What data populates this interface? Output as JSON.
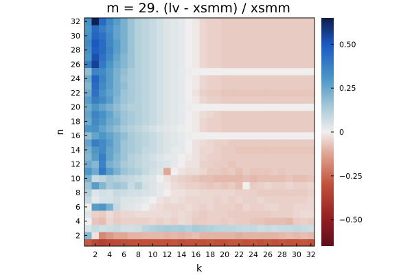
{
  "chart_data": {
    "type": "heatmap",
    "title": "m = 29. (lv - xsmm) / xsmm",
    "xlabel": "k",
    "ylabel": "n",
    "x": [
      1,
      2,
      3,
      4,
      5,
      6,
      7,
      8,
      9,
      10,
      11,
      12,
      13,
      14,
      15,
      16,
      17,
      18,
      19,
      20,
      21,
      22,
      23,
      24,
      25,
      26,
      27,
      28,
      29,
      30,
      31,
      32
    ],
    "y": [
      1,
      2,
      3,
      4,
      5,
      6,
      7,
      8,
      9,
      10,
      11,
      12,
      13,
      14,
      15,
      16,
      17,
      18,
      19,
      20,
      21,
      22,
      23,
      24,
      25,
      26,
      27,
      28,
      29,
      30,
      31,
      32
    ],
    "xticks": [
      2,
      4,
      6,
      8,
      10,
      12,
      14,
      16,
      18,
      20,
      22,
      24,
      26,
      28,
      30,
      32
    ],
    "yticks": [
      2,
      4,
      6,
      8,
      10,
      12,
      14,
      16,
      18,
      20,
      22,
      24,
      26,
      28,
      30,
      32
    ],
    "xlim": [
      0.5,
      32.5
    ],
    "ylim": [
      0.5,
      32.5
    ],
    "clim": [
      -0.65,
      0.65
    ],
    "colorbar_ticks": [
      {
        "value": 0.5,
        "label": "0.50"
      },
      {
        "value": 0.25,
        "label": "0.25"
      },
      {
        "value": 0,
        "label": "0"
      },
      {
        "value": -0.25,
        "label": "−0.25"
      },
      {
        "value": -0.5,
        "label": "−0.50"
      }
    ],
    "colormap": {
      "stops": [
        {
          "value": -0.65,
          "color": "#5e0f1e"
        },
        {
          "value": -0.5,
          "color": "#8f1d22"
        },
        {
          "value": -0.3,
          "color": "#c0503a"
        },
        {
          "value": -0.12,
          "color": "#e0a796"
        },
        {
          "value": 0,
          "color": "#f0eeee"
        },
        {
          "value": 0.12,
          "color": "#b4d0da"
        },
        {
          "value": 0.3,
          "color": "#4d97c6"
        },
        {
          "value": 0.5,
          "color": "#1a58c2"
        },
        {
          "value": 0.65,
          "color": "#101c4a"
        }
      ]
    },
    "grid": false,
    "colorbar": "right",
    "z": [
      [
        -0.28,
        -0.33,
        -0.36,
        -0.33,
        -0.32,
        -0.31,
        -0.3,
        -0.3,
        -0.3,
        -0.3,
        -0.3,
        -0.3,
        -0.29,
        -0.31,
        -0.3,
        -0.3,
        -0.3,
        -0.29,
        -0.3,
        -0.3,
        -0.29,
        -0.29,
        -0.3,
        -0.29,
        -0.3,
        -0.29,
        -0.3,
        -0.29,
        -0.3,
        -0.3,
        -0.29,
        -0.3
      ],
      [
        0.2,
        -0.02,
        -0.18,
        -0.15,
        -0.12,
        -0.12,
        -0.1,
        -0.1,
        -0.09,
        -0.09,
        -0.09,
        -0.1,
        -0.09,
        -0.1,
        -0.09,
        -0.08,
        -0.1,
        -0.1,
        -0.1,
        -0.1,
        -0.1,
        -0.11,
        -0.1,
        -0.1,
        -0.1,
        -0.1,
        -0.1,
        -0.09,
        -0.08,
        -0.09,
        -0.08,
        -0.09
      ],
      [
        0.05,
        0.08,
        0.06,
        0.07,
        0.08,
        0.06,
        0.06,
        0.07,
        0.1,
        0.12,
        0.13,
        0.14,
        0.13,
        0.14,
        0.12,
        0.14,
        0.13,
        0.12,
        0.11,
        0.1,
        0.1,
        0.09,
        0.08,
        0.09,
        0.07,
        0.08,
        0.07,
        0.08,
        0.08,
        0.09,
        0.08,
        0.07
      ],
      [
        0.0,
        -0.07,
        -0.08,
        -0.04,
        -0.06,
        -0.05,
        -0.05,
        -0.05,
        -0.05,
        -0.04,
        -0.05,
        -0.04,
        -0.05,
        -0.03,
        -0.04,
        -0.06,
        -0.06,
        -0.05,
        -0.05,
        -0.06,
        -0.05,
        -0.06,
        -0.06,
        -0.07,
        -0.07,
        -0.08,
        -0.08,
        -0.08,
        -0.09,
        -0.06,
        -0.05,
        -0.06
      ],
      [
        0.04,
        -0.05,
        -0.06,
        -0.03,
        -0.05,
        -0.04,
        -0.04,
        -0.03,
        -0.03,
        -0.03,
        -0.03,
        -0.03,
        -0.04,
        -0.03,
        -0.04,
        -0.05,
        -0.06,
        -0.05,
        -0.05,
        -0.05,
        -0.06,
        -0.06,
        -0.06,
        -0.06,
        -0.06,
        -0.06,
        -0.05,
        -0.05,
        -0.05,
        -0.04,
        -0.03,
        -0.03
      ],
      [
        0.0,
        0.28,
        0.3,
        0.22,
        0.08,
        0.04,
        0.03,
        0.02,
        0.0,
        -0.02,
        -0.03,
        -0.04,
        -0.04,
        -0.04,
        -0.03,
        -0.04,
        -0.05,
        -0.04,
        -0.05,
        -0.05,
        -0.05,
        -0.06,
        -0.04,
        -0.05,
        -0.05,
        -0.04,
        -0.04,
        -0.05,
        -0.05,
        -0.04,
        -0.04,
        -0.04
      ],
      [
        0.08,
        0.02,
        0.05,
        0.05,
        0.07,
        0.04,
        0.04,
        0.03,
        0.02,
        0.0,
        -0.02,
        -0.03,
        -0.02,
        -0.03,
        -0.04,
        -0.04,
        -0.04,
        -0.04,
        -0.05,
        -0.04,
        -0.05,
        -0.04,
        -0.05,
        -0.05,
        -0.04,
        -0.05,
        -0.05,
        -0.05,
        -0.05,
        -0.05,
        -0.05,
        -0.04
      ],
      [
        0.12,
        0.04,
        0.06,
        0.05,
        0.08,
        0.07,
        0.06,
        0.06,
        0.05,
        0.04,
        0.02,
        0.0,
        -0.02,
        -0.02,
        -0.03,
        -0.03,
        -0.04,
        -0.04,
        -0.04,
        -0.04,
        -0.04,
        -0.05,
        -0.05,
        -0.05,
        -0.06,
        -0.06,
        -0.06,
        -0.06,
        -0.06,
        -0.06,
        -0.06,
        -0.05
      ],
      [
        0.16,
        0.28,
        0.2,
        0.14,
        0.16,
        0.14,
        0.08,
        0.12,
        0.06,
        0.04,
        0.02,
        -0.01,
        -0.03,
        -0.04,
        -0.05,
        -0.05,
        -0.06,
        -0.07,
        -0.06,
        -0.07,
        -0.06,
        -0.08,
        0.0,
        -0.06,
        -0.05,
        -0.04,
        -0.05,
        -0.05,
        -0.04,
        -0.05,
        -0.05,
        -0.04
      ],
      [
        0.22,
        0.08,
        0.1,
        0.14,
        0.12,
        0.1,
        0.09,
        0.07,
        0.05,
        0.04,
        0.0,
        -0.02,
        -0.04,
        -0.05,
        -0.06,
        -0.07,
        -0.08,
        -0.08,
        -0.09,
        -0.09,
        -0.09,
        -0.09,
        -0.08,
        -0.09,
        -0.08,
        -0.08,
        -0.08,
        -0.08,
        -0.07,
        -0.08,
        -0.08,
        -0.07
      ],
      [
        0.3,
        0.24,
        0.4,
        0.28,
        0.22,
        0.16,
        0.14,
        0.12,
        0.09,
        0.06,
        0.04,
        -0.12,
        0.0,
        -0.02,
        -0.03,
        -0.03,
        -0.04,
        -0.06,
        -0.06,
        -0.07,
        -0.06,
        -0.08,
        -0.06,
        -0.07,
        -0.07,
        -0.07,
        -0.06,
        -0.07,
        -0.06,
        -0.06,
        -0.06,
        -0.06
      ],
      [
        0.24,
        0.2,
        0.36,
        0.22,
        0.19,
        0.14,
        0.12,
        0.1,
        0.08,
        0.07,
        0.05,
        0.04,
        0.02,
        0.0,
        -0.02,
        -0.02,
        -0.05,
        -0.05,
        -0.06,
        -0.06,
        -0.07,
        -0.06,
        -0.06,
        -0.06,
        -0.06,
        -0.06,
        -0.06,
        -0.06,
        -0.06,
        -0.06,
        -0.06,
        -0.06
      ],
      [
        0.2,
        0.28,
        0.38,
        0.26,
        0.2,
        0.16,
        0.12,
        0.1,
        0.08,
        0.06,
        0.04,
        0.02,
        0.02,
        0.0,
        -0.01,
        -0.02,
        -0.04,
        -0.05,
        -0.05,
        -0.06,
        -0.06,
        -0.06,
        -0.06,
        -0.06,
        -0.06,
        -0.06,
        -0.06,
        -0.06,
        -0.06,
        -0.06,
        -0.06,
        -0.06
      ],
      [
        0.22,
        0.3,
        0.34,
        0.26,
        0.22,
        0.16,
        0.14,
        0.12,
        0.09,
        0.08,
        0.06,
        0.04,
        0.02,
        0.02,
        0.0,
        -0.02,
        -0.04,
        -0.04,
        -0.05,
        -0.06,
        -0.06,
        -0.07,
        -0.07,
        -0.07,
        -0.07,
        -0.07,
        -0.07,
        -0.07,
        -0.07,
        -0.07,
        -0.07,
        -0.07
      ],
      [
        0.26,
        0.38,
        0.34,
        0.28,
        0.22,
        0.16,
        0.14,
        0.12,
        0.1,
        0.08,
        0.06,
        0.04,
        0.03,
        0.02,
        0.0,
        -0.02,
        -0.03,
        -0.04,
        -0.05,
        -0.05,
        -0.06,
        -0.06,
        -0.06,
        -0.06,
        -0.06,
        -0.06,
        -0.06,
        -0.06,
        -0.06,
        -0.06,
        -0.06,
        -0.06
      ],
      [
        0.18,
        0.26,
        0.3,
        0.26,
        0.22,
        0.18,
        0.14,
        0.12,
        0.1,
        0.08,
        0.06,
        0.04,
        0.03,
        0.02,
        0.01,
        0.0,
        0.0,
        0.0,
        0.0,
        0.0,
        0.0,
        0.0,
        0.0,
        0.0,
        0.0,
        0.0,
        0.0,
        0.0,
        0.0,
        0.0,
        0.0,
        0.0
      ],
      [
        0.3,
        0.32,
        0.26,
        0.22,
        0.18,
        0.14,
        0.12,
        0.1,
        0.08,
        0.06,
        0.04,
        0.03,
        0.02,
        0.01,
        0.0,
        -0.01,
        -0.04,
        -0.05,
        -0.05,
        -0.06,
        -0.06,
        -0.06,
        -0.06,
        -0.06,
        -0.06,
        -0.06,
        -0.06,
        -0.06,
        -0.06,
        -0.06,
        -0.06,
        -0.06
      ],
      [
        0.24,
        0.34,
        0.3,
        0.24,
        0.22,
        0.16,
        0.14,
        0.12,
        0.1,
        0.08,
        0.06,
        0.04,
        0.03,
        0.02,
        0.0,
        -0.01,
        -0.04,
        -0.05,
        -0.05,
        -0.06,
        -0.06,
        -0.06,
        -0.06,
        -0.06,
        -0.06,
        -0.06,
        -0.06,
        -0.06,
        -0.06,
        -0.06,
        -0.06,
        -0.06
      ],
      [
        0.26,
        0.36,
        0.32,
        0.26,
        0.2,
        0.16,
        0.14,
        0.12,
        0.1,
        0.08,
        0.06,
        0.04,
        0.03,
        0.02,
        0.0,
        -0.01,
        -0.03,
        -0.04,
        -0.05,
        -0.06,
        -0.06,
        -0.06,
        -0.06,
        -0.06,
        -0.06,
        -0.06,
        -0.06,
        -0.06,
        -0.06,
        -0.06,
        -0.06,
        -0.06
      ],
      [
        0.24,
        0.3,
        0.26,
        0.22,
        0.18,
        0.14,
        0.12,
        0.12,
        0.1,
        0.08,
        0.06,
        0.04,
        0.03,
        0.02,
        0.01,
        0.0,
        0.0,
        0.0,
        0.0,
        0.0,
        0.0,
        0.0,
        0.0,
        0.0,
        0.0,
        0.0,
        0.0,
        0.0,
        0.0,
        0.0,
        0.0,
        0.0
      ],
      [
        0.28,
        0.38,
        0.34,
        0.28,
        0.2,
        0.16,
        0.14,
        0.12,
        0.1,
        0.08,
        0.06,
        0.04,
        0.03,
        0.02,
        0.0,
        -0.01,
        -0.04,
        -0.05,
        -0.05,
        -0.06,
        -0.06,
        -0.06,
        -0.06,
        -0.06,
        -0.06,
        -0.06,
        -0.06,
        -0.06,
        -0.06,
        -0.06,
        -0.06,
        -0.06
      ],
      [
        0.24,
        0.42,
        0.32,
        0.26,
        0.22,
        0.16,
        0.14,
        0.12,
        0.1,
        0.08,
        0.06,
        0.04,
        0.03,
        0.02,
        0.0,
        -0.02,
        -0.05,
        -0.06,
        -0.06,
        -0.07,
        -0.07,
        -0.07,
        -0.07,
        -0.07,
        -0.07,
        -0.07,
        -0.07,
        -0.07,
        -0.07,
        -0.07,
        -0.07,
        -0.07
      ],
      [
        0.2,
        0.44,
        0.34,
        0.28,
        0.22,
        0.18,
        0.14,
        0.12,
        0.1,
        0.08,
        0.06,
        0.04,
        0.03,
        0.02,
        0.0,
        -0.01,
        -0.04,
        -0.05,
        -0.05,
        -0.06,
        -0.06,
        -0.06,
        -0.06,
        -0.06,
        -0.06,
        -0.06,
        -0.06,
        -0.06,
        -0.06,
        -0.06,
        -0.06,
        -0.06
      ],
      [
        0.24,
        0.46,
        0.36,
        0.28,
        0.22,
        0.16,
        0.14,
        0.12,
        0.1,
        0.08,
        0.06,
        0.04,
        0.03,
        0.02,
        0.0,
        -0.01,
        -0.04,
        -0.05,
        -0.05,
        -0.06,
        -0.06,
        -0.06,
        -0.06,
        -0.06,
        -0.06,
        -0.06,
        -0.06,
        -0.06,
        -0.06,
        -0.06,
        -0.06,
        -0.06
      ],
      [
        0.18,
        0.36,
        0.34,
        0.28,
        0.22,
        0.18,
        0.14,
        0.12,
        0.1,
        0.08,
        0.06,
        0.04,
        0.03,
        0.02,
        0.01,
        0.0,
        0.0,
        0.0,
        0.0,
        0.0,
        0.0,
        0.0,
        0.0,
        0.0,
        0.0,
        0.0,
        0.0,
        0.0,
        0.0,
        0.0,
        0.0,
        0.0
      ],
      [
        0.38,
        0.56,
        0.4,
        0.3,
        0.24,
        0.2,
        0.16,
        0.12,
        0.1,
        0.08,
        0.06,
        0.04,
        0.03,
        0.02,
        0.0,
        -0.01,
        -0.04,
        -0.05,
        -0.05,
        -0.06,
        -0.06,
        -0.06,
        -0.06,
        -0.06,
        -0.06,
        -0.06,
        -0.06,
        -0.06,
        -0.06,
        -0.06,
        -0.06,
        -0.06
      ],
      [
        0.3,
        0.52,
        0.42,
        0.34,
        0.26,
        0.2,
        0.16,
        0.12,
        0.1,
        0.08,
        0.06,
        0.04,
        0.03,
        0.02,
        0.0,
        -0.01,
        -0.04,
        -0.05,
        -0.05,
        -0.06,
        -0.06,
        -0.06,
        -0.06,
        -0.06,
        -0.06,
        -0.06,
        -0.06,
        -0.06,
        -0.06,
        -0.06,
        -0.06,
        -0.06
      ],
      [
        0.32,
        0.48,
        0.44,
        0.36,
        0.28,
        0.22,
        0.16,
        0.12,
        0.1,
        0.08,
        0.06,
        0.04,
        0.03,
        0.02,
        0.0,
        -0.01,
        -0.04,
        -0.05,
        -0.05,
        -0.06,
        -0.06,
        -0.06,
        -0.06,
        -0.06,
        -0.06,
        -0.06,
        -0.06,
        -0.06,
        -0.06,
        -0.06,
        -0.06,
        -0.06
      ],
      [
        0.34,
        0.5,
        0.44,
        0.34,
        0.28,
        0.22,
        0.16,
        0.12,
        0.1,
        0.08,
        0.06,
        0.04,
        0.03,
        0.02,
        0.0,
        -0.01,
        -0.04,
        -0.05,
        -0.05,
        -0.06,
        -0.06,
        -0.06,
        -0.06,
        -0.06,
        -0.06,
        -0.06,
        -0.06,
        -0.06,
        -0.06,
        -0.06,
        -0.06,
        -0.06
      ],
      [
        0.32,
        0.46,
        0.42,
        0.34,
        0.26,
        0.22,
        0.16,
        0.12,
        0.1,
        0.08,
        0.06,
        0.04,
        0.03,
        0.02,
        0.0,
        -0.01,
        -0.04,
        -0.05,
        -0.05,
        -0.06,
        -0.06,
        -0.06,
        -0.06,
        -0.06,
        -0.06,
        -0.06,
        -0.06,
        -0.06,
        -0.06,
        -0.06,
        -0.06,
        -0.06
      ],
      [
        0.3,
        0.44,
        0.38,
        0.32,
        0.26,
        0.22,
        0.16,
        0.12,
        0.1,
        0.08,
        0.06,
        0.04,
        0.03,
        0.02,
        0.0,
        -0.01,
        -0.04,
        -0.05,
        -0.05,
        -0.06,
        -0.06,
        -0.06,
        -0.06,
        -0.06,
        -0.06,
        -0.06,
        -0.06,
        -0.06,
        -0.06,
        -0.06,
        -0.06,
        -0.06
      ],
      [
        0.32,
        0.64,
        0.44,
        0.34,
        0.28,
        0.22,
        0.16,
        0.12,
        0.1,
        0.08,
        0.06,
        0.04,
        0.03,
        0.02,
        0.0,
        -0.01,
        -0.04,
        -0.05,
        -0.05,
        -0.06,
        -0.06,
        -0.06,
        -0.06,
        -0.06,
        -0.06,
        -0.06,
        -0.06,
        -0.06,
        -0.06,
        -0.06,
        -0.06,
        -0.06
      ]
    ]
  }
}
